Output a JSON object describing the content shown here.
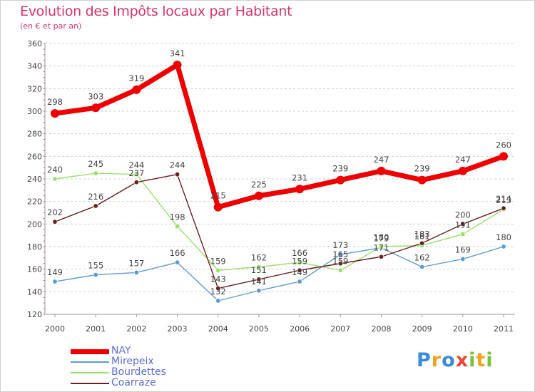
{
  "title": "Evolution des Impôts locaux par Habitant",
  "subtitle": "(en € et par an)",
  "logo": {
    "text": "Proxiti",
    "letters": [
      {
        "ch": "P",
        "color": "#3a8bd9"
      },
      {
        "ch": "r",
        "color": "#f0a31e"
      },
      {
        "ch": "o",
        "color": "#3a8bd9"
      },
      {
        "ch": "x",
        "color": "#e8463a"
      },
      {
        "ch": "i",
        "color": "#78c23c"
      },
      {
        "ch": "t",
        "color": "#f0a31e"
      },
      {
        "ch": "i",
        "color": "#78c23c"
      }
    ]
  },
  "chart_data": {
    "type": "line",
    "x": [
      "2000",
      "2001",
      "2002",
      "2003",
      "2004",
      "2005",
      "2006",
      "2007",
      "2008",
      "2009",
      "2010",
      "2011"
    ],
    "ylim": [
      120,
      360
    ],
    "yticks": [
      120,
      140,
      160,
      180,
      200,
      220,
      240,
      260,
      280,
      300,
      320,
      340,
      360
    ],
    "grid": "dashed-horizontal",
    "legend_position": "bottom-left",
    "series": [
      {
        "name": "NAY",
        "color": "#ee0000",
        "values": [
          298,
          303,
          319,
          341,
          215,
          225,
          231,
          239,
          247,
          239,
          247,
          260
        ]
      },
      {
        "name": "Mirepeix",
        "color": "#5b9bd5",
        "values": [
          149,
          155,
          157,
          166,
          132,
          141,
          149,
          173,
          179,
          162,
          169,
          180
        ]
      },
      {
        "name": "Bourdettes",
        "color": "#99e06a",
        "values": [
          240,
          245,
          244,
          198,
          159,
          162,
          166,
          159,
          180,
          181,
          191,
          213
        ]
      },
      {
        "name": "Coarraze",
        "color": "#6b1f1f",
        "values": [
          202,
          216,
          237,
          244,
          143,
          151,
          159,
          165,
          171,
          183,
          200,
          214
        ]
      }
    ],
    "labels": {
      "NAY": [
        "298",
        "303",
        "319",
        "341",
        "215",
        "225",
        "231",
        "239",
        "247",
        "239",
        "247",
        "260"
      ],
      "Mirepeix": [
        "149",
        "155",
        "157",
        "166",
        "132",
        "141",
        "149",
        "173",
        "179",
        "162",
        "169",
        "180"
      ],
      "Bourdettes": [
        "240",
        "245",
        "244",
        "198",
        "159",
        "162",
        "166",
        "159",
        "180",
        "181",
        "191",
        "213"
      ],
      "Coarraze": [
        "202",
        "216",
        "237",
        "244",
        "143",
        "151",
        "159",
        "165",
        "171",
        "183",
        "200",
        "214"
      ]
    }
  }
}
